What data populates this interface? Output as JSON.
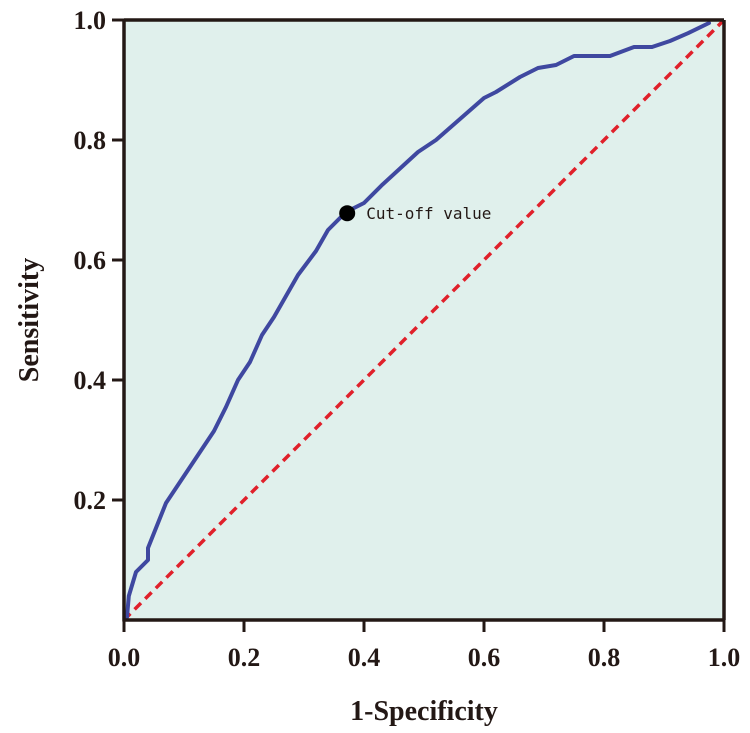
{
  "chart_data": {
    "type": "line",
    "title": "",
    "xlabel": "1-Specificity",
    "ylabel": "Sensitivity",
    "xlim": [
      0,
      1
    ],
    "ylim": [
      0,
      1
    ],
    "x_ticks": [
      "0.0",
      "0.2",
      "0.4",
      "0.6",
      "0.8",
      "1.0"
    ],
    "y_ticks": [
      "0.2",
      "0.4",
      "0.6",
      "0.8",
      "1.0"
    ],
    "grid": false,
    "legend": "none",
    "colors": {
      "background": "#e0f0ec",
      "roc": "#3f48a0",
      "reference": "#e0202a",
      "axis": "#231815"
    },
    "series": [
      {
        "x": [
          0.005,
          0.008,
          0.02,
          0.04,
          0.04,
          0.05,
          0.07,
          0.11,
          0.15,
          0.17,
          0.19,
          0.21,
          0.23,
          0.25,
          0.27,
          0.29,
          0.32,
          0.34,
          0.37,
          0.4,
          0.43,
          0.49,
          0.52,
          0.56,
          0.6,
          0.62,
          0.66,
          0.69,
          0.72,
          0.75,
          0.78,
          0.81,
          0.85,
          0.88,
          0.91,
          0.94,
          0.975
        ],
        "y": [
          0.005,
          0.04,
          0.08,
          0.1,
          0.12,
          0.145,
          0.195,
          0.255,
          0.315,
          0.355,
          0.4,
          0.43,
          0.475,
          0.505,
          0.54,
          0.575,
          0.615,
          0.65,
          0.68,
          0.695,
          0.725,
          0.78,
          0.8,
          0.835,
          0.87,
          0.88,
          0.905,
          0.92,
          0.925,
          0.94,
          0.94,
          0.94,
          0.955,
          0.955,
          0.965,
          0.978,
          0.995
        ]
      },
      {
        "x": [
          0,
          1
        ],
        "y": [
          0,
          1
        ]
      }
    ],
    "annotations": [
      {
        "text": "Cut-off value",
        "x": 0.372,
        "y": 0.678
      }
    ]
  }
}
